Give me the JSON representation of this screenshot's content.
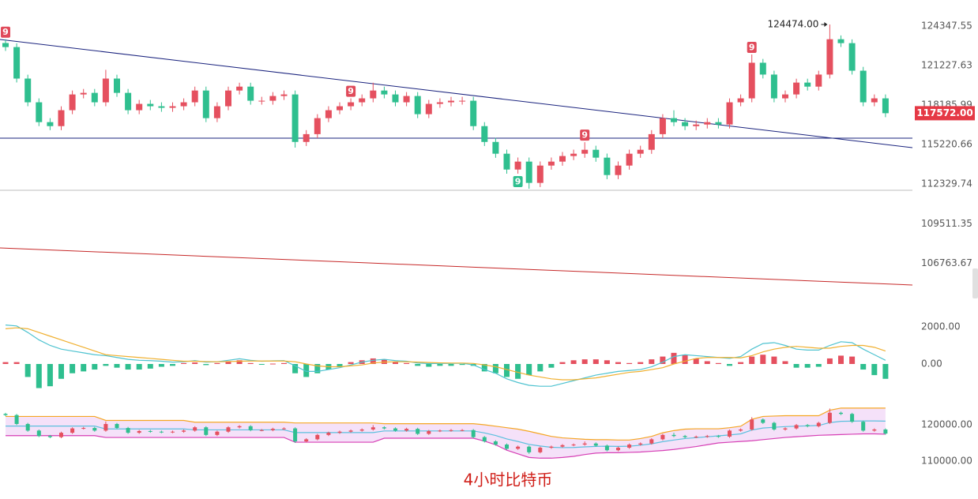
{
  "caption": "4小时比特币",
  "chart_data": [
    {
      "type": "candlestick",
      "log": true,
      "up_color": "#e5505f",
      "down_color": "#2fbf8f",
      "ylim": [
        104000,
        126450
      ],
      "yticks": [
        124347.55,
        121227.63,
        118185.99,
        115220.66,
        112329.74,
        109511.35,
        106763.67
      ],
      "annotation": {
        "text": "124474.00",
        "index": 74,
        "value": 124474
      },
      "current_price_label": "117572.00",
      "markers": [
        {
          "index": 0,
          "label": "9",
          "color": "#e04a5a",
          "position": "above"
        },
        {
          "index": 31,
          "label": "9",
          "color": "#e04a5a",
          "position": "above"
        },
        {
          "index": 46,
          "label": "9",
          "color": "#2fbf8f",
          "position": "below"
        },
        {
          "index": 52,
          "label": "9",
          "color": "#e04a5a",
          "position": "above"
        },
        {
          "index": 67,
          "label": "9",
          "color": "#e04a5a",
          "position": "above"
        }
      ],
      "open": [
        123000,
        122680,
        120220,
        118400,
        116900,
        116600,
        117800,
        119000,
        119120,
        118400,
        120220,
        119120,
        117800,
        118280,
        118100,
        117980,
        118100,
        118400,
        119300,
        117200,
        118100,
        119300,
        119600,
        118520,
        118520,
        118880,
        119000,
        115420,
        116000,
        117200,
        117800,
        118100,
        118400,
        118700,
        119300,
        119000,
        118400,
        118880,
        117500,
        118280,
        118400,
        118520,
        118520,
        116600,
        115420,
        114550,
        113390,
        113970,
        112420,
        113680,
        113970,
        114380,
        114550,
        114840,
        114260,
        112990,
        113680,
        114550,
        114840,
        116000,
        117200,
        116900,
        116600,
        116720,
        116900,
        116720,
        118400,
        118700,
        121450,
        120530,
        118700,
        119000,
        119910,
        119600,
        120530,
        123300,
        122990,
        120830,
        118400,
        118700
      ],
      "high": [
        123300,
        122980,
        120520,
        118700,
        117200,
        118100,
        119300,
        119420,
        119420,
        120900,
        120520,
        119420,
        118580,
        118580,
        118400,
        118400,
        118700,
        119600,
        119600,
        118400,
        119600,
        119900,
        119900,
        118820,
        119180,
        119300,
        119300,
        116300,
        117500,
        118100,
        118400,
        118700,
        119000,
        119900,
        119600,
        119300,
        119180,
        119180,
        118580,
        118700,
        118820,
        118820,
        118820,
        116900,
        115720,
        114850,
        114270,
        114270,
        113980,
        114270,
        114680,
        114850,
        115400,
        115140,
        114560,
        113980,
        114850,
        115140,
        116300,
        117500,
        117800,
        117200,
        117020,
        117200,
        117200,
        118700,
        119000,
        122100,
        121750,
        120830,
        119300,
        120210,
        120210,
        120830,
        124474,
        123600,
        123290,
        121130,
        119000,
        119000
      ],
      "low": [
        122380,
        119920,
        118100,
        116600,
        116300,
        116300,
        117500,
        118700,
        118100,
        118100,
        118820,
        117500,
        117500,
        117800,
        117680,
        117680,
        117800,
        118100,
        116900,
        116900,
        117800,
        119000,
        118220,
        118220,
        118220,
        118580,
        115000,
        115120,
        115700,
        116900,
        117500,
        117800,
        118100,
        118400,
        118700,
        118100,
        118100,
        117200,
        117200,
        117980,
        118100,
        118220,
        116300,
        115120,
        114250,
        113090,
        113090,
        112000,
        112120,
        113380,
        113670,
        114080,
        114250,
        113960,
        112690,
        112690,
        113380,
        114250,
        114540,
        115700,
        116600,
        116300,
        116300,
        116420,
        116420,
        116420,
        118100,
        118400,
        120230,
        118400,
        118400,
        118700,
        119300,
        119300,
        120230,
        122690,
        120530,
        118100,
        118100,
        117272
      ],
      "close": [
        122680,
        120220,
        118400,
        116900,
        116600,
        117800,
        119000,
        119120,
        118400,
        120220,
        119120,
        117800,
        118280,
        118100,
        117980,
        118100,
        118400,
        119300,
        117200,
        118100,
        119300,
        119600,
        118520,
        118520,
        118880,
        119000,
        115420,
        116000,
        117200,
        117800,
        118100,
        118400,
        118700,
        119300,
        119000,
        118400,
        118880,
        117500,
        118280,
        118400,
        118520,
        118520,
        116600,
        115420,
        114550,
        113390,
        113970,
        112420,
        113680,
        113970,
        114380,
        114550,
        114840,
        114260,
        112990,
        113680,
        114550,
        114840,
        116000,
        117200,
        116900,
        116600,
        116720,
        116900,
        116720,
        118400,
        118700,
        121450,
        120530,
        118700,
        119000,
        119910,
        119600,
        120530,
        123300,
        122990,
        120830,
        118400,
        118700,
        117572
      ]
    },
    {
      "type": "macd",
      "ylim": [
        -1660,
        2596
      ],
      "yticks": [
        {
          "value": 2000,
          "label": "2000.00"
        },
        {
          "value": 0,
          "label": "0.00"
        }
      ],
      "histogram": {
        "up_color": "#e5505f",
        "down_color": "#2fbf8f",
        "values": [
          100,
          100,
          -700,
          -1300,
          -1200,
          -800,
          -500,
          -400,
          -300,
          -100,
          -200,
          -300,
          -300,
          -250,
          -150,
          -100,
          50,
          80,
          -60,
          50,
          150,
          200,
          50,
          -20,
          20,
          50,
          -500,
          -700,
          -500,
          -300,
          -150,
          100,
          200,
          300,
          250,
          100,
          50,
          -100,
          -150,
          -100,
          -100,
          -50,
          -100,
          -400,
          -500,
          -700,
          -800,
          -600,
          -400,
          -200,
          100,
          200,
          250,
          250,
          200,
          100,
          50,
          100,
          250,
          400,
          600,
          500,
          300,
          150,
          50,
          -100,
          100,
          400,
          500,
          400,
          150,
          -200,
          -200,
          -150,
          300,
          450,
          400,
          -300,
          -600,
          -800
        ]
      },
      "dif": {
        "color": "#4fc3d0",
        "values": [
          2100,
          2050,
          1700,
          1300,
          1000,
          800,
          700,
          600,
          500,
          450,
          350,
          250,
          200,
          180,
          150,
          100,
          120,
          180,
          100,
          120,
          200,
          280,
          200,
          150,
          170,
          180,
          -100,
          -400,
          -400,
          -300,
          -200,
          -50,
          100,
          200,
          250,
          180,
          150,
          50,
          20,
          30,
          30,
          40,
          -50,
          -300,
          -500,
          -800,
          -1000,
          -1150,
          -1200,
          -1200,
          -1050,
          -900,
          -750,
          -600,
          -500,
          -400,
          -350,
          -300,
          -150,
          100,
          400,
          500,
          450,
          400,
          350,
          300,
          400,
          800,
          1100,
          1150,
          1000,
          800,
          750,
          750,
          1000,
          1200,
          1150,
          800,
          500,
          200
        ]
      },
      "dea": {
        "color": "#f0b030",
        "values": [
          1900,
          1950,
          1900,
          1700,
          1500,
          1300,
          1100,
          900,
          700,
          500,
          450,
          400,
          350,
          300,
          250,
          200,
          150,
          150,
          130,
          120,
          130,
          150,
          160,
          160,
          160,
          160,
          120,
          0,
          -100,
          -150,
          -150,
          -100,
          -50,
          50,
          100,
          120,
          120,
          100,
          80,
          60,
          50,
          50,
          30,
          -50,
          -150,
          -300,
          -450,
          -600,
          -700,
          -800,
          -850,
          -850,
          -800,
          -750,
          -650,
          -550,
          -450,
          -400,
          -300,
          -200,
          0,
          150,
          300,
          350,
          350,
          350,
          330,
          450,
          650,
          800,
          900,
          950,
          900,
          850,
          850,
          950,
          1000,
          1000,
          900,
          700
        ]
      }
    },
    {
      "type": "bollinger",
      "ylim": [
        107600,
        125000
      ],
      "yticks": [
        {
          "value": 120000,
          "label": "120000.00"
        },
        {
          "value": 110000,
          "label": "110000.00"
        }
      ],
      "fill": "rgba(226,170,238,0.35)",
      "upper": {
        "color": "#f5a623",
        "values": [
          122300,
          122300,
          122300,
          122300,
          122300,
          122300,
          122300,
          122300,
          122300,
          121200,
          121200,
          121200,
          121200,
          121200,
          121200,
          121200,
          121200,
          120700,
          120700,
          120700,
          120700,
          120700,
          120700,
          120700,
          120700,
          120700,
          120500,
          120500,
          120500,
          120500,
          120500,
          120500,
          120500,
          120500,
          120300,
          120300,
          120300,
          120300,
          120300,
          120300,
          120300,
          120300,
          120300,
          120000,
          119600,
          119200,
          118800,
          118200,
          117500,
          116800,
          116400,
          116200,
          116000,
          115900,
          115900,
          115800,
          115800,
          116200,
          116800,
          117800,
          118400,
          118800,
          118900,
          118900,
          118900,
          119200,
          119600,
          121500,
          122300,
          122400,
          122500,
          122500,
          122500,
          122500,
          124000,
          124600,
          124600,
          124600,
          124600,
          124600
        ]
      },
      "middle": {
        "color": "#5bc0de",
        "values": [
          119650,
          119650,
          119650,
          119650,
          119650,
          119650,
          119650,
          119650,
          119650,
          118850,
          118850,
          118850,
          118850,
          118850,
          118850,
          118850,
          118850,
          118600,
          118600,
          118600,
          118600,
          118600,
          118600,
          118600,
          118600,
          118600,
          117850,
          117850,
          117850,
          117850,
          117850,
          117850,
          117850,
          117850,
          118300,
          118300,
          118300,
          118300,
          118300,
          118300,
          118300,
          118300,
          118300,
          117750,
          117050,
          116100,
          115400,
          114600,
          114150,
          113800,
          113700,
          113750,
          113900,
          114050,
          114100,
          114050,
          114100,
          114350,
          114750,
          115350,
          115800,
          116200,
          116450,
          116700,
          116950,
          117200,
          117500,
          118550,
          119100,
          119300,
          119500,
          119600,
          119700,
          119800,
          120600,
          120950,
          121000,
          121050,
          121050,
          121000
        ]
      },
      "lower": {
        "color": "#d63fb5",
        "values": [
          117000,
          117000,
          117000,
          117000,
          117000,
          117000,
          117000,
          117000,
          117000,
          116500,
          116500,
          116500,
          116500,
          116500,
          116500,
          116500,
          116500,
          116500,
          116500,
          116500,
          116500,
          116500,
          116500,
          116500,
          116500,
          116500,
          115200,
          115200,
          115200,
          115200,
          115200,
          115200,
          115200,
          115200,
          116300,
          116300,
          116300,
          116300,
          116300,
          116300,
          116300,
          116300,
          116300,
          115500,
          114500,
          113000,
          112000,
          111000,
          110800,
          110800,
          111000,
          111300,
          111800,
          112200,
          112300,
          112300,
          112400,
          112500,
          112700,
          112900,
          113200,
          113600,
          114000,
          114500,
          115000,
          115200,
          115400,
          115600,
          115900,
          116200,
          116500,
          116700,
          116900,
          117100,
          117200,
          117300,
          117400,
          117500,
          117500,
          117400
        ]
      }
    }
  ]
}
